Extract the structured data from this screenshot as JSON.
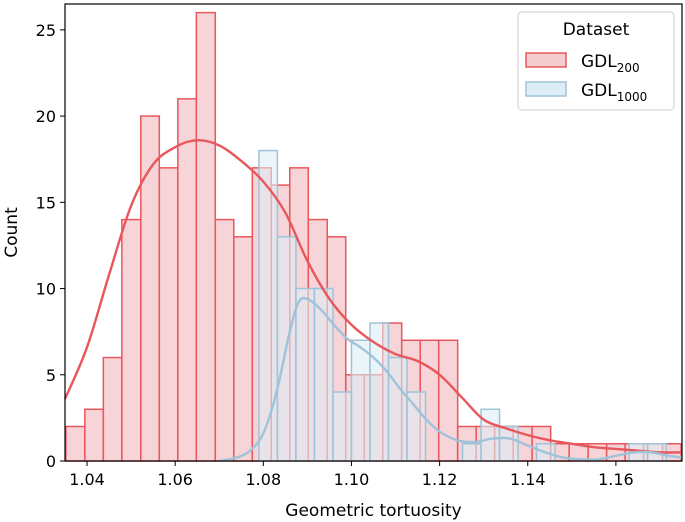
{
  "chart_data": {
    "type": "histogram",
    "xlabel": "Geometric tortuosity",
    "ylabel": "Count",
    "xlim": [
      1.035,
      1.175
    ],
    "ylim": [
      0,
      26.5
    ],
    "x_ticks": [
      1.04,
      1.06,
      1.08,
      1.1,
      1.12,
      1.14,
      1.16
    ],
    "x_tick_labels": [
      "1.04",
      "1.06",
      "1.08",
      "1.10",
      "1.12",
      "1.14",
      "1.16"
    ],
    "y_ticks": [
      0,
      5,
      10,
      15,
      20,
      25
    ],
    "y_tick_labels": [
      "0",
      "5",
      "10",
      "15",
      "20",
      "25"
    ],
    "grid": false,
    "legend": {
      "title": "Dataset",
      "placement": "top-right"
    },
    "series": [
      {
        "name_base": "GDL",
        "name_sub": "200",
        "color": "#e8575c",
        "fill": "#f4cdd1",
        "bins": [
          {
            "x0": 1.0352,
            "x1": 1.0395,
            "count": 2
          },
          {
            "x0": 1.0395,
            "x1": 1.0437,
            "count": 3
          },
          {
            "x0": 1.0437,
            "x1": 1.0479,
            "count": 6
          },
          {
            "x0": 1.0479,
            "x1": 1.0522,
            "count": 14
          },
          {
            "x0": 1.0522,
            "x1": 1.0564,
            "count": 20
          },
          {
            "x0": 1.0564,
            "x1": 1.0606,
            "count": 17
          },
          {
            "x0": 1.0606,
            "x1": 1.0648,
            "count": 21
          },
          {
            "x0": 1.0648,
            "x1": 1.0691,
            "count": 26
          },
          {
            "x0": 1.0691,
            "x1": 1.0733,
            "count": 14
          },
          {
            "x0": 1.0733,
            "x1": 1.0775,
            "count": 13
          },
          {
            "x0": 1.0775,
            "x1": 1.0818,
            "count": 17
          },
          {
            "x0": 1.0818,
            "x1": 1.086,
            "count": 16
          },
          {
            "x0": 1.086,
            "x1": 1.0902,
            "count": 17
          },
          {
            "x0": 1.0902,
            "x1": 1.0945,
            "count": 14
          },
          {
            "x0": 1.0945,
            "x1": 1.0987,
            "count": 13
          },
          {
            "x0": 1.0987,
            "x1": 1.1029,
            "count": 5
          },
          {
            "x0": 1.1029,
            "x1": 1.1071,
            "count": 5
          },
          {
            "x0": 1.1071,
            "x1": 1.1114,
            "count": 8
          },
          {
            "x0": 1.1114,
            "x1": 1.1156,
            "count": 7
          },
          {
            "x0": 1.1156,
            "x1": 1.1198,
            "count": 7
          },
          {
            "x0": 1.1198,
            "x1": 1.1241,
            "count": 7
          },
          {
            "x0": 1.1241,
            "x1": 1.1283,
            "count": 2
          },
          {
            "x0": 1.1283,
            "x1": 1.1325,
            "count": 2
          },
          {
            "x0": 1.1325,
            "x1": 1.1367,
            "count": 2
          },
          {
            "x0": 1.1367,
            "x1": 1.141,
            "count": 2
          },
          {
            "x0": 1.141,
            "x1": 1.1452,
            "count": 2
          },
          {
            "x0": 1.1452,
            "x1": 1.1494,
            "count": 1
          },
          {
            "x0": 1.1494,
            "x1": 1.1537,
            "count": 1
          },
          {
            "x0": 1.1537,
            "x1": 1.1579,
            "count": 1
          },
          {
            "x0": 1.1579,
            "x1": 1.1621,
            "count": 1
          },
          {
            "x0": 1.1621,
            "x1": 1.1663,
            "count": 1
          },
          {
            "x0": 1.1663,
            "x1": 1.1706,
            "count": 1
          },
          {
            "x0": 1.1706,
            "x1": 1.1748,
            "count": 1
          }
        ],
        "kde": [
          [
            1.035,
            3.6
          ],
          [
            1.04,
            6.6
          ],
          [
            1.045,
            10.8
          ],
          [
            1.05,
            14.8
          ],
          [
            1.055,
            17.2
          ],
          [
            1.06,
            18.2
          ],
          [
            1.065,
            18.6
          ],
          [
            1.07,
            18.3
          ],
          [
            1.075,
            17.4
          ],
          [
            1.08,
            16.2
          ],
          [
            1.085,
            14.4
          ],
          [
            1.09,
            11.6
          ],
          [
            1.095,
            9.4
          ],
          [
            1.1,
            7.9
          ],
          [
            1.105,
            6.9
          ],
          [
            1.11,
            6.2
          ],
          [
            1.115,
            5.8
          ],
          [
            1.12,
            5.0
          ],
          [
            1.125,
            3.7
          ],
          [
            1.13,
            2.4
          ],
          [
            1.135,
            1.9
          ],
          [
            1.14,
            1.5
          ],
          [
            1.145,
            1.2
          ],
          [
            1.15,
            1.0
          ],
          [
            1.155,
            0.8
          ],
          [
            1.16,
            0.7
          ],
          [
            1.165,
            0.6
          ],
          [
            1.17,
            0.5
          ],
          [
            1.175,
            0.5
          ]
        ]
      },
      {
        "name_base": "GDL",
        "name_sub": "1000",
        "color": "#9fc3d9",
        "fill": "#deedf5",
        "bins": [
          {
            "x0": 1.079,
            "x1": 1.0832,
            "count": 18
          },
          {
            "x0": 1.0832,
            "x1": 1.0874,
            "count": 13
          },
          {
            "x0": 1.0874,
            "x1": 1.0916,
            "count": 10
          },
          {
            "x0": 1.0916,
            "x1": 1.0958,
            "count": 10
          },
          {
            "x0": 1.0958,
            "x1": 1.1,
            "count": 4
          },
          {
            "x0": 1.1,
            "x1": 1.1042,
            "count": 7
          },
          {
            "x0": 1.1042,
            "x1": 1.1084,
            "count": 8
          },
          {
            "x0": 1.1084,
            "x1": 1.1126,
            "count": 6
          },
          {
            "x0": 1.1126,
            "x1": 1.1168,
            "count": 4
          },
          {
            "x0": 1.1168,
            "x1": 1.121,
            "count": 0
          },
          {
            "x0": 1.121,
            "x1": 1.1252,
            "count": 0
          },
          {
            "x0": 1.1252,
            "x1": 1.1294,
            "count": 1
          },
          {
            "x0": 1.1294,
            "x1": 1.1336,
            "count": 3
          },
          {
            "x0": 1.1336,
            "x1": 1.1378,
            "count": 2
          },
          {
            "x0": 1.1378,
            "x1": 1.142,
            "count": 0
          },
          {
            "x0": 1.142,
            "x1": 1.1462,
            "count": 1
          },
          {
            "x0": 1.1462,
            "x1": 1.1504,
            "count": 0
          },
          {
            "x0": 1.1504,
            "x1": 1.1546,
            "count": 0
          },
          {
            "x0": 1.1546,
            "x1": 1.1588,
            "count": 0
          },
          {
            "x0": 1.1588,
            "x1": 1.163,
            "count": 0
          },
          {
            "x0": 1.163,
            "x1": 1.1672,
            "count": 1
          },
          {
            "x0": 1.1672,
            "x1": 1.1714,
            "count": 1
          }
        ],
        "kde": [
          [
            1.07,
            0.0
          ],
          [
            1.074,
            0.2
          ],
          [
            1.077,
            0.6
          ],
          [
            1.08,
            1.6
          ],
          [
            1.083,
            4.0
          ],
          [
            1.086,
            7.5
          ],
          [
            1.088,
            9.2
          ],
          [
            1.09,
            9.4
          ],
          [
            1.093,
            8.8
          ],
          [
            1.096,
            7.9
          ],
          [
            1.099,
            7.1
          ],
          [
            1.102,
            6.6
          ],
          [
            1.105,
            6.0
          ],
          [
            1.108,
            5.2
          ],
          [
            1.111,
            4.2
          ],
          [
            1.114,
            3.3
          ],
          [
            1.117,
            2.4
          ],
          [
            1.12,
            1.7
          ],
          [
            1.124,
            1.2
          ],
          [
            1.128,
            1.1
          ],
          [
            1.132,
            1.3
          ],
          [
            1.136,
            1.3
          ],
          [
            1.14,
            0.9
          ],
          [
            1.144,
            0.5
          ],
          [
            1.148,
            0.2
          ],
          [
            1.152,
            0.1
          ],
          [
            1.156,
            0.1
          ],
          [
            1.16,
            0.3
          ],
          [
            1.164,
            0.5
          ],
          [
            1.168,
            0.5
          ],
          [
            1.172,
            0.3
          ],
          [
            1.175,
            0.2
          ]
        ]
      }
    ]
  }
}
